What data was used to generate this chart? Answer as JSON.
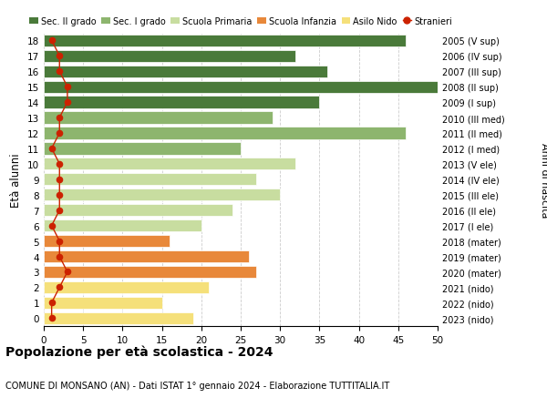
{
  "ages": [
    0,
    1,
    2,
    3,
    4,
    5,
    6,
    7,
    8,
    9,
    10,
    11,
    12,
    13,
    14,
    15,
    16,
    17,
    18
  ],
  "right_labels": [
    "2023 (nido)",
    "2022 (nido)",
    "2021 (nido)",
    "2020 (mater)",
    "2019 (mater)",
    "2018 (mater)",
    "2017 (I ele)",
    "2016 (II ele)",
    "2015 (III ele)",
    "2014 (IV ele)",
    "2013 (V ele)",
    "2012 (I med)",
    "2011 (II med)",
    "2010 (III med)",
    "2009 (I sup)",
    "2008 (II sup)",
    "2007 (III sup)",
    "2006 (IV sup)",
    "2005 (V sup)"
  ],
  "bar_values": [
    19,
    15,
    21,
    27,
    26,
    16,
    20,
    24,
    30,
    27,
    32,
    25,
    46,
    29,
    35,
    50,
    36,
    32,
    46
  ],
  "bar_colors": [
    "#f5e07a",
    "#f5e07a",
    "#f5e07a",
    "#e8883a",
    "#e8883a",
    "#e8883a",
    "#c8dda0",
    "#c8dda0",
    "#c8dda0",
    "#c8dda0",
    "#c8dda0",
    "#8db56e",
    "#8db56e",
    "#8db56e",
    "#4a7a3a",
    "#4a7a3a",
    "#4a7a3a",
    "#4a7a3a",
    "#4a7a3a"
  ],
  "stranieri_values": [
    1,
    1,
    2,
    3,
    2,
    2,
    1,
    2,
    2,
    2,
    2,
    1,
    2,
    2,
    3,
    3,
    2,
    2,
    1
  ],
  "legend_labels": [
    "Sec. II grado",
    "Sec. I grado",
    "Scuola Primaria",
    "Scuola Infanzia",
    "Asilo Nido",
    "Stranieri"
  ],
  "legend_colors": [
    "#4a7a3a",
    "#8db56e",
    "#c8dda0",
    "#e8883a",
    "#f5e07a",
    "#cc2200"
  ],
  "ylabel_left": "Età alunni",
  "ylabel_right": "Anni di nascita",
  "xlim": [
    0,
    50
  ],
  "xticks": [
    0,
    5,
    10,
    15,
    20,
    25,
    30,
    35,
    40,
    45,
    50
  ],
  "title_bold": "Popolazione per età scolastica - 2024",
  "subtitle": "COMUNE DI MONSANO (AN) - Dati ISTAT 1° gennaio 2024 - Elaborazione TUTTITALIA.IT",
  "background_color": "#ffffff",
  "grid_color": "#cccccc"
}
